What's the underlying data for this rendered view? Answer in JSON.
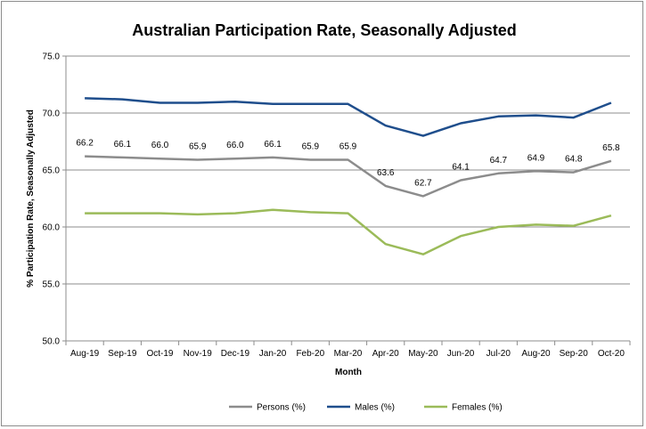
{
  "chart_data": {
    "type": "line",
    "title": "Australian Participation Rate, Seasonally Adjusted",
    "xlabel": "Month",
    "ylabel": "% Participation Rate, Seasonally Adjusted",
    "ylim": [
      50.0,
      75.0
    ],
    "yticks": [
      "50.0",
      "55.0",
      "60.0",
      "65.0",
      "70.0",
      "75.0"
    ],
    "grid": true,
    "legend_position": "bottom",
    "categories": [
      "Aug-19",
      "Sep-19",
      "Oct-19",
      "Nov-19",
      "Dec-19",
      "Jan-20",
      "Feb-20",
      "Mar-20",
      "Apr-20",
      "May-20",
      "Jun-20",
      "Jul-20",
      "Aug-20",
      "Sep-20",
      "Oct-20"
    ],
    "series": [
      {
        "name": "Persons (%)",
        "color": "#8c8c8c",
        "values": [
          66.2,
          66.1,
          66.0,
          65.9,
          66.0,
          66.1,
          65.9,
          65.9,
          63.6,
          62.7,
          64.1,
          64.7,
          64.9,
          64.8,
          65.8
        ],
        "data_labels": [
          "66.2",
          "66.1",
          "66.0",
          "65.9",
          "66.0",
          "66.1",
          "65.9",
          "65.9",
          "63.6",
          "62.7",
          "64.1",
          "64.7",
          "64.9",
          "64.8",
          "65.8"
        ]
      },
      {
        "name": "Males (%)",
        "color": "#1f4e8c",
        "values": [
          71.3,
          71.2,
          70.9,
          70.9,
          71.0,
          70.8,
          70.8,
          70.8,
          68.9,
          68.0,
          69.1,
          69.7,
          69.8,
          69.6,
          70.9
        ]
      },
      {
        "name": "Females (%)",
        "color": "#9bbb59",
        "values": [
          61.2,
          61.2,
          61.2,
          61.1,
          61.2,
          61.5,
          61.3,
          61.2,
          58.5,
          57.6,
          59.2,
          60.0,
          60.2,
          60.1,
          61.0
        ]
      }
    ]
  }
}
